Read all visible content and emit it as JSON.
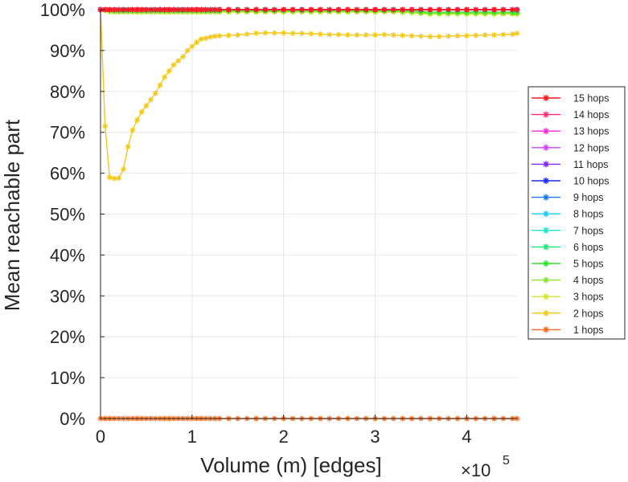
{
  "chart_data": {
    "type": "line",
    "xlabel": "Volume (m) [edges]",
    "ylabel": "Mean reachable part",
    "x_multiplier_label": {
      "base": "×10",
      "exponent": "5"
    },
    "xlim": [
      0,
      455000
    ],
    "ylim": [
      0,
      100
    ],
    "x_ticks": [
      {
        "value": 0,
        "label": "0"
      },
      {
        "value": 100000,
        "label": "1"
      },
      {
        "value": 200000,
        "label": "2"
      },
      {
        "value": 300000,
        "label": "3"
      },
      {
        "value": 400000,
        "label": "4"
      }
    ],
    "y_ticks": [
      {
        "value": 0,
        "label": "0%"
      },
      {
        "value": 10,
        "label": "10%"
      },
      {
        "value": 20,
        "label": "20%"
      },
      {
        "value": 30,
        "label": "30%"
      },
      {
        "value": 40,
        "label": "40%"
      },
      {
        "value": 50,
        "label": "50%"
      },
      {
        "value": 60,
        "label": "60%"
      },
      {
        "value": 70,
        "label": "70%"
      },
      {
        "value": 80,
        "label": "80%"
      },
      {
        "value": 90,
        "label": "90%"
      },
      {
        "value": 100,
        "label": "100%"
      }
    ],
    "grid": true,
    "legend_position": "right",
    "x": [
      0,
      5000,
      10000,
      15000,
      20000,
      25000,
      30000,
      35000,
      40000,
      45000,
      50000,
      55000,
      60000,
      65000,
      70000,
      75000,
      80000,
      85000,
      90000,
      95000,
      100000,
      105000,
      110000,
      115000,
      120000,
      125000,
      130000,
      140000,
      150000,
      160000,
      170000,
      180000,
      190000,
      200000,
      210000,
      220000,
      230000,
      240000,
      250000,
      260000,
      270000,
      280000,
      290000,
      300000,
      310000,
      320000,
      330000,
      340000,
      350000,
      360000,
      370000,
      380000,
      390000,
      400000,
      410000,
      420000,
      430000,
      440000,
      450000,
      455000
    ],
    "series": [
      {
        "name": "15 hops",
        "color": "#ff1a1a",
        "values": [
          100,
          100,
          100,
          100,
          100,
          100,
          100,
          100,
          100,
          100,
          100,
          100,
          100,
          100,
          100,
          100,
          100,
          100,
          100,
          100,
          100,
          100,
          100,
          100,
          100,
          100,
          100,
          100,
          100,
          100,
          100,
          100,
          100,
          100,
          100,
          100,
          100,
          100,
          100,
          100,
          100,
          100,
          100,
          100,
          100,
          100,
          100,
          100,
          100,
          100,
          100,
          100,
          100,
          100,
          100,
          100,
          100,
          100,
          100,
          100
        ]
      },
      {
        "name": "14 hops",
        "color": "#ff2a78",
        "values": [
          100,
          100,
          100,
          100,
          100,
          100,
          100,
          100,
          100,
          100,
          100,
          100,
          100,
          100,
          100,
          100,
          100,
          100,
          100,
          100,
          100,
          100,
          100,
          100,
          100,
          100,
          100,
          100,
          100,
          100,
          100,
          100,
          100,
          100,
          100,
          100,
          100,
          100,
          100,
          100,
          100,
          100,
          100,
          100,
          100,
          100,
          100,
          100,
          100,
          100,
          100,
          100,
          100,
          100,
          100,
          100,
          100,
          100,
          100,
          100
        ]
      },
      {
        "name": "13 hops",
        "color": "#ff2ad8",
        "values": [
          100,
          100,
          100,
          100,
          100,
          100,
          100,
          100,
          100,
          100,
          100,
          100,
          100,
          100,
          100,
          100,
          100,
          100,
          100,
          100,
          100,
          100,
          100,
          100,
          100,
          100,
          100,
          100,
          100,
          100,
          100,
          100,
          100,
          100,
          100,
          100,
          100,
          100,
          100,
          100,
          100,
          100,
          100,
          100,
          100,
          100,
          100,
          100,
          100,
          100,
          100,
          100,
          100,
          100,
          100,
          100,
          100,
          100,
          100,
          100
        ]
      },
      {
        "name": "12 hops",
        "color": "#d23cff",
        "values": [
          100,
          100,
          100,
          100,
          100,
          100,
          100,
          100,
          100,
          100,
          100,
          100,
          100,
          100,
          100,
          100,
          100,
          100,
          100,
          100,
          100,
          100,
          100,
          100,
          100,
          100,
          100,
          100,
          100,
          100,
          100,
          100,
          100,
          100,
          100,
          100,
          100,
          100,
          100,
          100,
          100,
          100,
          100,
          100,
          100,
          100,
          100,
          100,
          100,
          100,
          100,
          100,
          100,
          100,
          100,
          100,
          100,
          100,
          100,
          100
        ]
      },
      {
        "name": "11 hops",
        "color": "#7a2aff",
        "values": [
          100,
          100,
          100,
          100,
          100,
          100,
          100,
          100,
          100,
          100,
          100,
          100,
          100,
          100,
          100,
          100,
          100,
          100,
          100,
          100,
          100,
          100,
          100,
          100,
          100,
          100,
          100,
          100,
          100,
          100,
          100,
          100,
          100,
          100,
          100,
          100,
          100,
          100,
          100,
          100,
          100,
          100,
          100,
          100,
          100,
          100,
          100,
          100,
          100,
          100,
          100,
          100,
          100,
          100,
          100,
          100,
          100,
          100,
          100,
          100
        ]
      },
      {
        "name": "10 hops",
        "color": "#1a2aff",
        "values": [
          100,
          100,
          100,
          100,
          100,
          100,
          100,
          100,
          100,
          100,
          100,
          100,
          100,
          100,
          100,
          100,
          100,
          100,
          100,
          100,
          100,
          100,
          100,
          100,
          100,
          100,
          100,
          100,
          100,
          100,
          100,
          100,
          100,
          100,
          100,
          100,
          100,
          100,
          100,
          100,
          100,
          100,
          100,
          100,
          100,
          100,
          100,
          100,
          100,
          100,
          100,
          100,
          100,
          100,
          100,
          100,
          100,
          100,
          100,
          100
        ]
      },
      {
        "name": "9 hops",
        "color": "#1a78ff",
        "values": [
          100,
          100,
          100,
          100,
          100,
          100,
          100,
          100,
          100,
          100,
          100,
          100,
          100,
          100,
          100,
          100,
          100,
          100,
          100,
          100,
          100,
          100,
          100,
          100,
          100,
          100,
          100,
          100,
          100,
          100,
          100,
          100,
          100,
          100,
          100,
          100,
          100,
          100,
          100,
          100,
          100,
          100,
          100,
          100,
          100,
          100,
          100,
          100,
          100,
          100,
          100,
          100,
          100,
          100,
          100,
          100,
          100,
          100,
          100,
          100
        ]
      },
      {
        "name": "8 hops",
        "color": "#1ac8ff",
        "values": [
          100,
          100,
          100,
          100,
          100,
          100,
          100,
          100,
          100,
          100,
          100,
          100,
          100,
          100,
          100,
          100,
          100,
          100,
          100,
          100,
          100,
          100,
          100,
          100,
          100,
          100,
          100,
          100,
          100,
          100,
          100,
          100,
          100,
          100,
          100,
          100,
          100,
          100,
          100,
          100,
          100,
          100,
          100,
          100,
          100,
          100,
          100,
          100,
          100,
          100,
          100,
          100,
          100,
          100,
          100,
          100,
          100,
          100,
          100,
          100
        ]
      },
      {
        "name": "7 hops",
        "color": "#1ae6c8",
        "values": [
          100,
          100,
          100,
          100,
          100,
          100,
          100,
          100,
          100,
          100,
          100,
          100,
          100,
          100,
          100,
          100,
          100,
          100,
          100,
          100,
          100,
          100,
          100,
          100,
          100,
          100,
          100,
          100,
          100,
          100,
          100,
          100,
          100,
          100,
          100,
          100,
          100,
          100,
          100,
          100,
          100,
          100,
          100,
          100,
          100,
          100,
          100,
          100,
          100,
          100,
          100,
          100,
          100,
          100,
          100,
          100,
          100,
          100,
          100,
          100
        ]
      },
      {
        "name": "6 hops",
        "color": "#1ae678",
        "values": [
          100,
          100,
          100,
          100,
          100,
          100,
          100,
          100,
          100,
          100,
          100,
          100,
          100,
          100,
          100,
          100,
          100,
          100,
          100,
          100,
          100,
          100,
          100,
          100,
          100,
          100,
          100,
          100,
          100,
          100,
          100,
          100,
          100,
          100,
          100,
          100,
          100,
          100,
          100,
          100,
          100,
          100,
          100,
          100,
          100,
          100,
          100,
          99.9,
          99.9,
          99.9,
          99.9,
          99.9,
          99.9,
          99.9,
          99.9,
          99.9,
          99.9,
          99.9,
          99.9,
          99.9
        ]
      },
      {
        "name": "5 hops",
        "color": "#2ae62a",
        "values": [
          100,
          100,
          99.9,
          99.8,
          99.8,
          99.8,
          99.8,
          99.8,
          99.8,
          99.8,
          99.8,
          99.8,
          99.8,
          99.8,
          99.8,
          99.8,
          99.8,
          99.8,
          99.8,
          99.8,
          99.8,
          99.8,
          99.8,
          99.8,
          99.8,
          99.8,
          99.8,
          99.8,
          99.8,
          99.8,
          99.8,
          99.8,
          99.8,
          99.8,
          99.8,
          99.8,
          99.8,
          99.8,
          99.8,
          99.8,
          99.8,
          99.8,
          99.8,
          99.8,
          99.8,
          99.8,
          99.8,
          99.7,
          99.5,
          99.4,
          99.4,
          99.4,
          99.4,
          99.4,
          99.4,
          99.4,
          99.4,
          99.4,
          99.4,
          99.4
        ]
      },
      {
        "name": "4 hops",
        "color": "#8ae62a",
        "values": [
          100,
          99.9,
          99.7,
          99.6,
          99.6,
          99.6,
          99.6,
          99.6,
          99.6,
          99.6,
          99.6,
          99.6,
          99.6,
          99.6,
          99.6,
          99.6,
          99.6,
          99.6,
          99.6,
          99.6,
          99.6,
          99.6,
          99.6,
          99.6,
          99.6,
          99.6,
          99.6,
          99.6,
          99.6,
          99.6,
          99.6,
          99.6,
          99.6,
          99.6,
          99.6,
          99.6,
          99.6,
          99.6,
          99.6,
          99.6,
          99.6,
          99.6,
          99.6,
          99.6,
          99.6,
          99.6,
          99.5,
          99.4,
          99.2,
          99.1,
          99.1,
          99.1,
          99.1,
          99.1,
          99.1,
          99.1,
          99.1,
          99.1,
          99.1,
          99.1
        ]
      },
      {
        "name": "3 hops",
        "color": "#d2e62a",
        "values": [
          100,
          99.8,
          99.5,
          99.4,
          99.4,
          99.4,
          99.4,
          99.4,
          99.4,
          99.4,
          99.4,
          99.4,
          99.4,
          99.4,
          99.4,
          99.4,
          99.4,
          99.4,
          99.4,
          99.4,
          99.4,
          99.4,
          99.4,
          99.4,
          99.4,
          99.4,
          99.4,
          99.4,
          99.4,
          99.4,
          99.4,
          99.4,
          99.4,
          99.4,
          99.4,
          99.4,
          99.4,
          99.4,
          99.4,
          99.4,
          99.4,
          99.4,
          99.4,
          99.4,
          99.4,
          99.4,
          99.3,
          99.2,
          99.0,
          98.9,
          98.9,
          98.9,
          98.9,
          98.9,
          98.9,
          98.9,
          98.9,
          98.9,
          98.9,
          98.9
        ]
      },
      {
        "name": "2 hops",
        "color": "#f2c81a",
        "values": [
          100,
          71.5,
          59,
          58.7,
          58.8,
          61,
          66.5,
          70.5,
          73,
          75,
          76.5,
          78,
          79.5,
          81.5,
          83.5,
          85,
          86.5,
          87.5,
          88.5,
          90,
          91,
          92,
          92.8,
          93,
          93.3,
          93.5,
          93.6,
          93.7,
          93.8,
          94,
          94.2,
          94.3,
          94.3,
          94.3,
          94.2,
          94.2,
          94.1,
          94,
          93.9,
          93.9,
          93.8,
          93.8,
          93.8,
          93.8,
          93.9,
          93.8,
          93.7,
          93.6,
          93.5,
          93.4,
          93.4,
          93.5,
          93.6,
          93.6,
          93.7,
          93.8,
          93.8,
          93.9,
          94,
          94.2
        ]
      },
      {
        "name": "1 hops",
        "color": "#ff6a1a",
        "values": [
          0,
          0,
          0,
          0,
          0,
          0,
          0,
          0,
          0,
          0,
          0,
          0,
          0,
          0,
          0,
          0,
          0,
          0,
          0,
          0,
          0,
          0,
          0,
          0,
          0,
          0,
          0,
          0,
          0,
          0,
          0,
          0,
          0,
          0,
          0,
          0,
          0,
          0,
          0,
          0,
          0,
          0,
          0,
          0,
          0,
          0,
          0,
          0,
          0,
          0,
          0,
          0,
          0,
          0,
          0,
          0,
          0,
          0,
          0,
          0
        ]
      }
    ]
  }
}
